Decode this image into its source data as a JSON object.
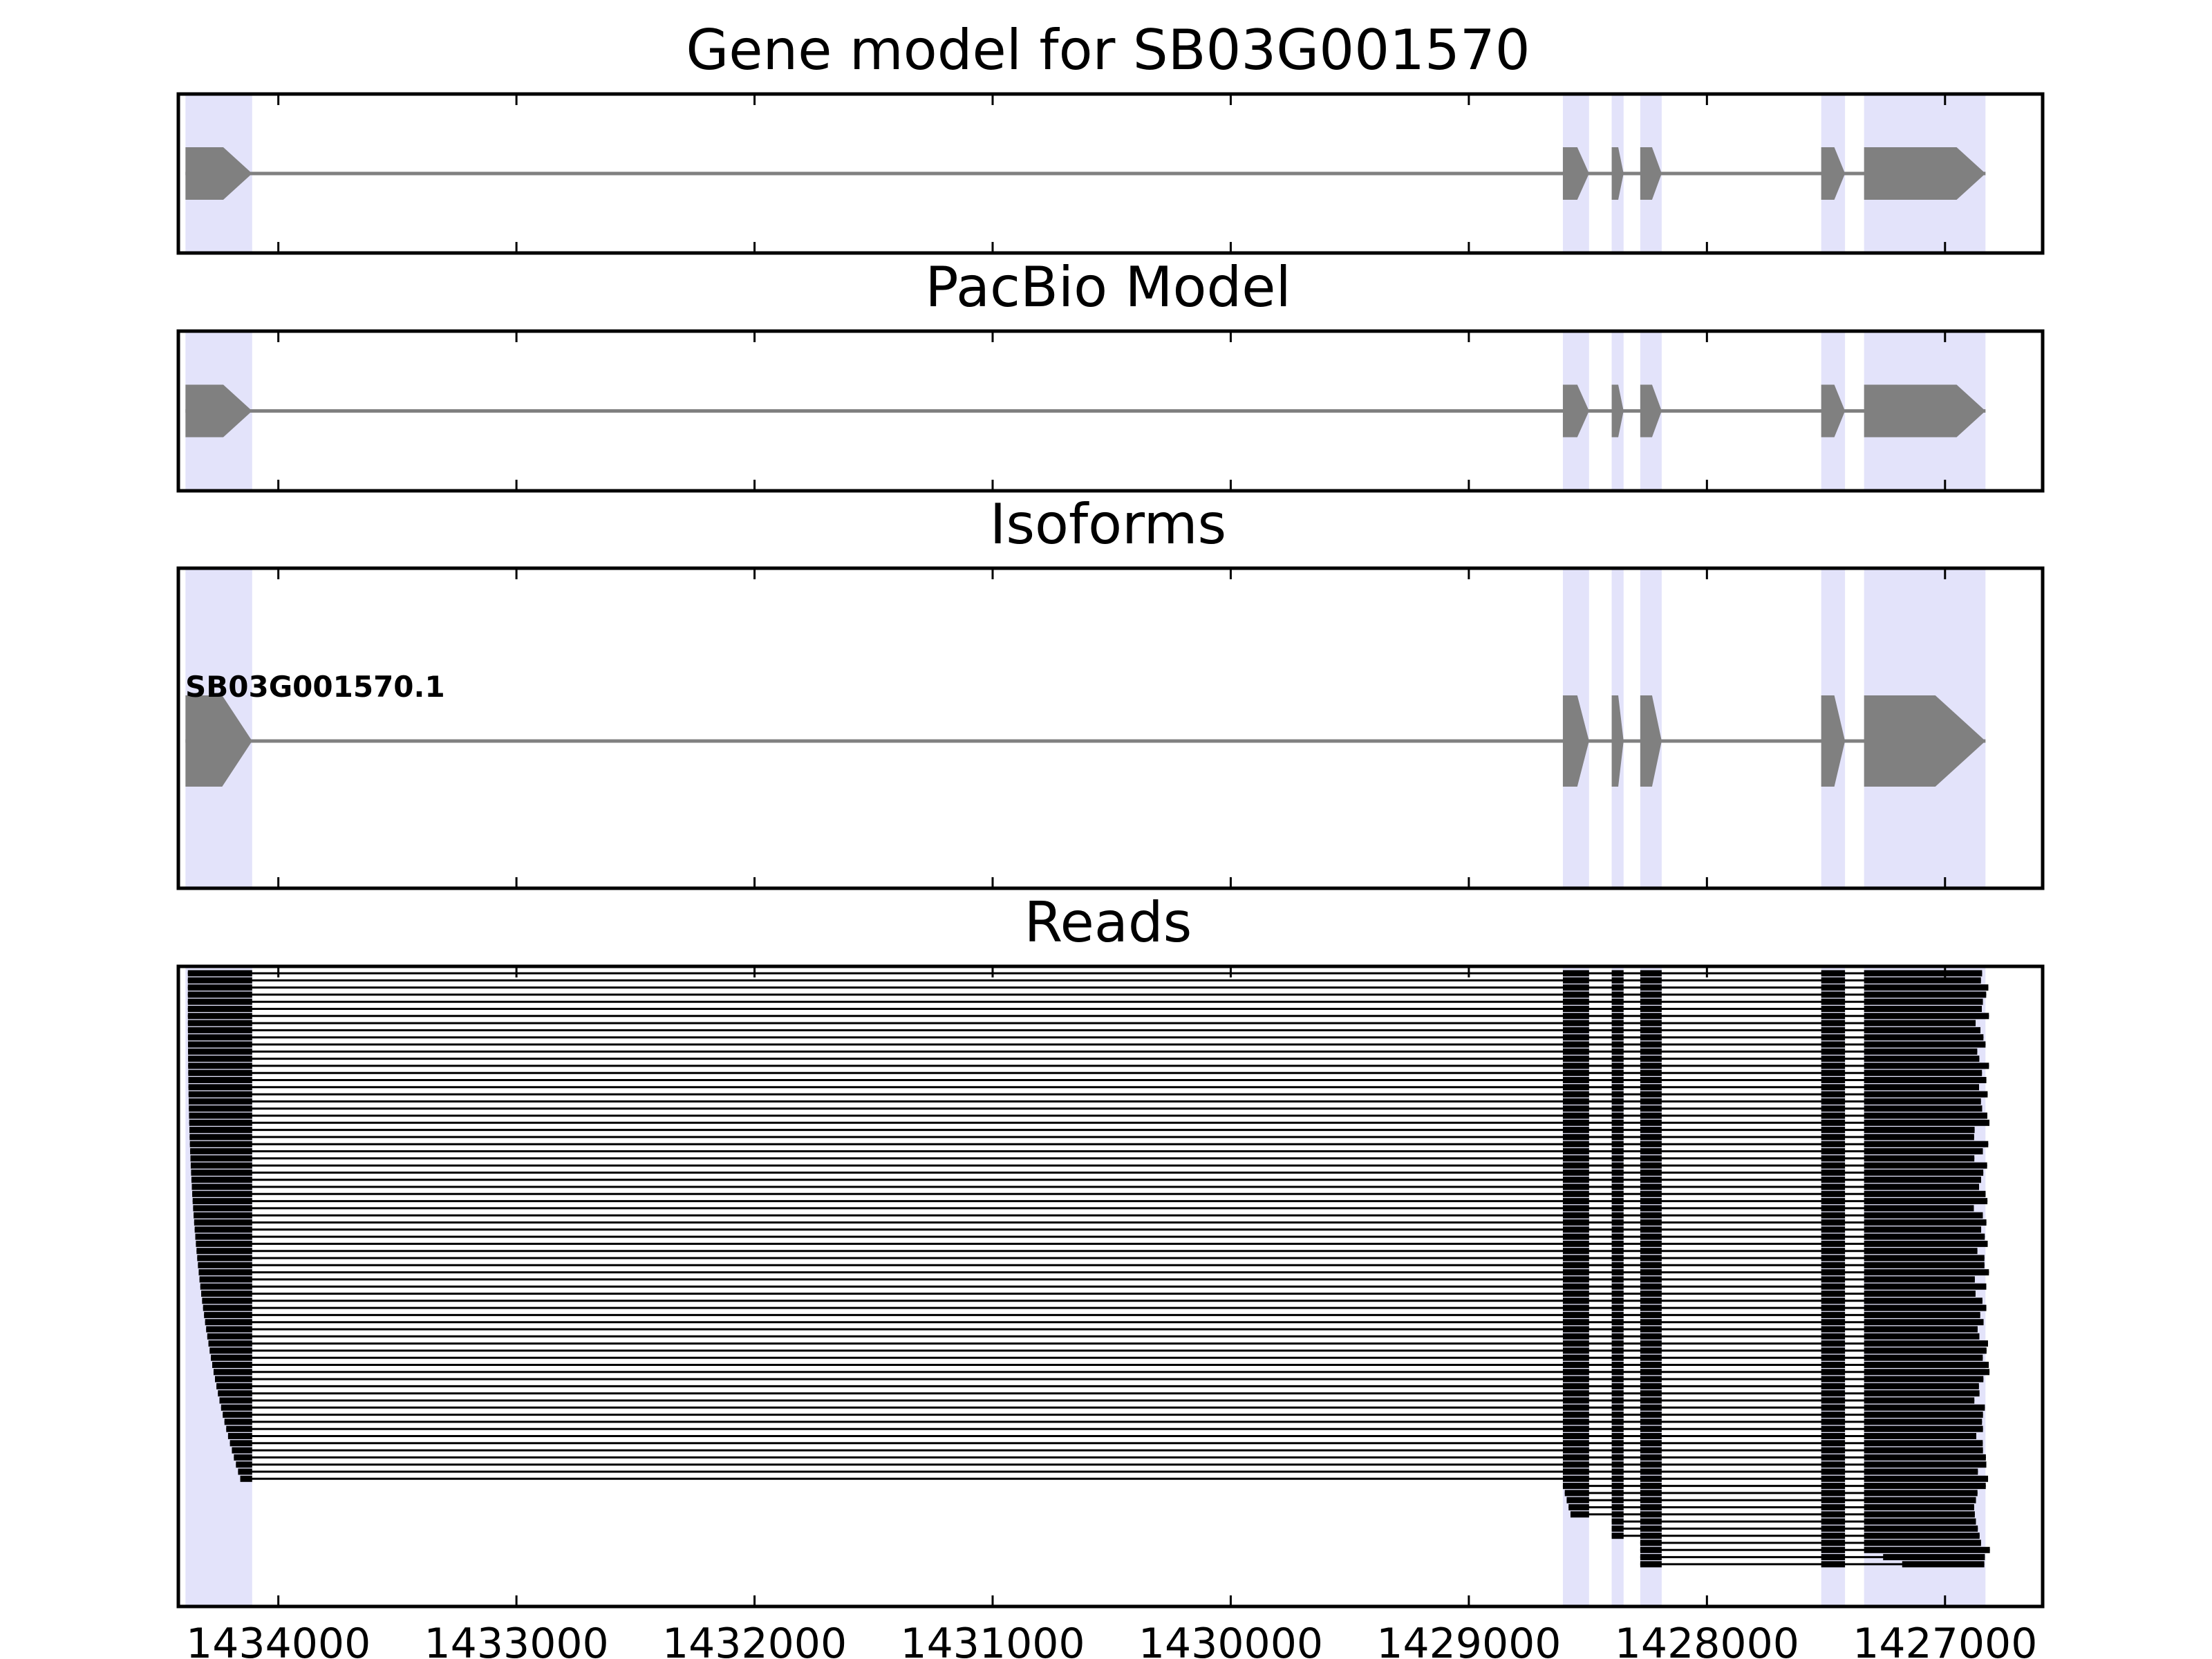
{
  "chart_data": {
    "type": "gene-structure",
    "x_axis": {
      "ticks": [
        1434000,
        1433000,
        1432000,
        1431000,
        1430000,
        1429000,
        1428000,
        1427000
      ],
      "tick_labels": [
        "1434000",
        "1433000",
        "1432000",
        "1431000",
        "1430000",
        "1429000",
        "1428000",
        "1427000"
      ],
      "xlim": [
        1434420,
        1426590
      ],
      "reversed": true
    },
    "colors": {
      "exon": "#808080",
      "intron": "#808080",
      "highlight": "#e3e3fa",
      "read": "#000000"
    },
    "exons": [
      [
        1434390,
        1434110
      ],
      [
        1428605,
        1428495
      ],
      [
        1428400,
        1428350
      ],
      [
        1428280,
        1428190
      ],
      [
        1427520,
        1427420
      ],
      [
        1427340,
        1426830
      ]
    ],
    "panels": [
      {
        "title": "Gene model for SB03G001570",
        "model": {
          "strand": "-",
          "exons": [
            [
              1434390,
              1434110
            ],
            [
              1428605,
              1428495
            ],
            [
              1428400,
              1428350
            ],
            [
              1428280,
              1428190
            ],
            [
              1427520,
              1427420
            ],
            [
              1427340,
              1426830
            ]
          ]
        }
      },
      {
        "title": "PacBio Model",
        "model": {
          "strand": "-",
          "exons": [
            [
              1434390,
              1434110
            ],
            [
              1428605,
              1428495
            ],
            [
              1428400,
              1428350
            ],
            [
              1428280,
              1428190
            ],
            [
              1427520,
              1427420
            ],
            [
              1427340,
              1426830
            ]
          ]
        }
      },
      {
        "title": "Isoforms",
        "isoforms": [
          {
            "name": "SB03G001570.1",
            "strand": "-",
            "exons": [
              [
                1434390,
                1434110
              ],
              [
                1428605,
                1428495
              ],
              [
                1428400,
                1428350
              ],
              [
                1428280,
                1428190
              ],
              [
                1427520,
                1427420
              ],
              [
                1427340,
                1426830
              ]
            ]
          }
        ]
      },
      {
        "title": "Reads",
        "reads": {
          "full_length_count": 72,
          "truncated_count": 12,
          "start_min": 1434380,
          "start_max": 1434160,
          "end_min": 1426810,
          "end_max": 1426880
        }
      }
    ]
  }
}
